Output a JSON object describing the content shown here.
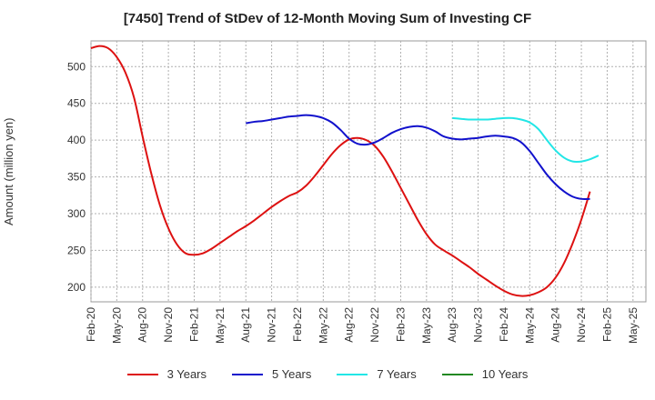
{
  "chart_data": {
    "type": "line",
    "title": "[7450]  Trend of StDev of 12-Month Moving Sum of Investing CF",
    "xlabel": "",
    "ylabel": "Amount (million yen)",
    "ylim": [
      180,
      535
    ],
    "yticks": [
      200,
      250,
      300,
      350,
      400,
      450,
      500
    ],
    "x_tick_labels": [
      "Feb-20",
      "May-20",
      "Aug-20",
      "Nov-20",
      "Feb-21",
      "May-21",
      "Aug-21",
      "Nov-21",
      "Feb-22",
      "May-22",
      "Aug-22",
      "Nov-22",
      "Feb-23",
      "May-23",
      "Aug-23",
      "Nov-23",
      "Feb-24",
      "May-24",
      "Aug-24",
      "Nov-24",
      "Feb-25",
      "May-25"
    ],
    "grid": true,
    "legend_position": "bottom",
    "series": [
      {
        "name": "3 Years",
        "color": "#dd1111",
        "points": [
          [
            0,
            525
          ],
          [
            1,
            528
          ],
          [
            2,
            525
          ],
          [
            3,
            513
          ],
          [
            4,
            492
          ],
          [
            5,
            458
          ],
          [
            6,
            405
          ],
          [
            7,
            355
          ],
          [
            8,
            312
          ],
          [
            9,
            280
          ],
          [
            10,
            258
          ],
          [
            11,
            246
          ],
          [
            12,
            244
          ],
          [
            13,
            246
          ],
          [
            14,
            252
          ],
          [
            15,
            260
          ],
          [
            16,
            268
          ],
          [
            17,
            276
          ],
          [
            18,
            283
          ],
          [
            19,
            291
          ],
          [
            20,
            300
          ],
          [
            21,
            309
          ],
          [
            22,
            317
          ],
          [
            23,
            324
          ],
          [
            24,
            329
          ],
          [
            25,
            338
          ],
          [
            26,
            351
          ],
          [
            27,
            366
          ],
          [
            28,
            381
          ],
          [
            29,
            393
          ],
          [
            30,
            401
          ],
          [
            31,
            403
          ],
          [
            32,
            400
          ],
          [
            33,
            392
          ],
          [
            34,
            377
          ],
          [
            35,
            357
          ],
          [
            36,
            335
          ],
          [
            37,
            313
          ],
          [
            38,
            291
          ],
          [
            39,
            272
          ],
          [
            40,
            258
          ],
          [
            41,
            250
          ],
          [
            42,
            243
          ],
          [
            43,
            235
          ],
          [
            44,
            227
          ],
          [
            45,
            218
          ],
          [
            46,
            210
          ],
          [
            47,
            202
          ],
          [
            48,
            195
          ],
          [
            49,
            190
          ],
          [
            50,
            188
          ],
          [
            51,
            189
          ],
          [
            52,
            193
          ],
          [
            53,
            200
          ],
          [
            54,
            213
          ],
          [
            55,
            233
          ],
          [
            56,
            260
          ],
          [
            57,
            292
          ],
          [
            58,
            330
          ]
        ]
      },
      {
        "name": "5 Years",
        "color": "#1111cc",
        "points": [
          [
            18,
            423
          ],
          [
            19,
            425
          ],
          [
            20,
            426
          ],
          [
            21,
            428
          ],
          [
            22,
            430
          ],
          [
            23,
            432
          ],
          [
            24,
            433
          ],
          [
            25,
            434
          ],
          [
            26,
            433
          ],
          [
            27,
            430
          ],
          [
            28,
            424
          ],
          [
            29,
            414
          ],
          [
            30,
            402
          ],
          [
            31,
            395
          ],
          [
            32,
            394
          ],
          [
            33,
            397
          ],
          [
            34,
            403
          ],
          [
            35,
            410
          ],
          [
            36,
            415
          ],
          [
            37,
            418
          ],
          [
            38,
            419
          ],
          [
            39,
            417
          ],
          [
            40,
            412
          ],
          [
            41,
            405
          ],
          [
            42,
            402
          ],
          [
            43,
            401
          ],
          [
            44,
            402
          ],
          [
            45,
            403
          ],
          [
            46,
            405
          ],
          [
            47,
            406
          ],
          [
            48,
            405
          ],
          [
            49,
            403
          ],
          [
            50,
            397
          ],
          [
            51,
            385
          ],
          [
            52,
            369
          ],
          [
            53,
            353
          ],
          [
            54,
            340
          ],
          [
            55,
            330
          ],
          [
            56,
            323
          ],
          [
            57,
            320
          ],
          [
            58,
            320
          ]
        ]
      },
      {
        "name": "7 Years",
        "color": "#22e6e6",
        "points": [
          [
            42,
            430
          ],
          [
            43,
            429
          ],
          [
            44,
            428
          ],
          [
            45,
            428
          ],
          [
            46,
            428
          ],
          [
            47,
            429
          ],
          [
            48,
            430
          ],
          [
            49,
            430
          ],
          [
            50,
            428
          ],
          [
            51,
            424
          ],
          [
            52,
            415
          ],
          [
            53,
            400
          ],
          [
            54,
            386
          ],
          [
            55,
            376
          ],
          [
            56,
            371
          ],
          [
            57,
            371
          ],
          [
            58,
            374
          ],
          [
            59,
            379
          ]
        ]
      },
      {
        "name": "10 Years",
        "color": "#228822",
        "points": []
      }
    ]
  }
}
